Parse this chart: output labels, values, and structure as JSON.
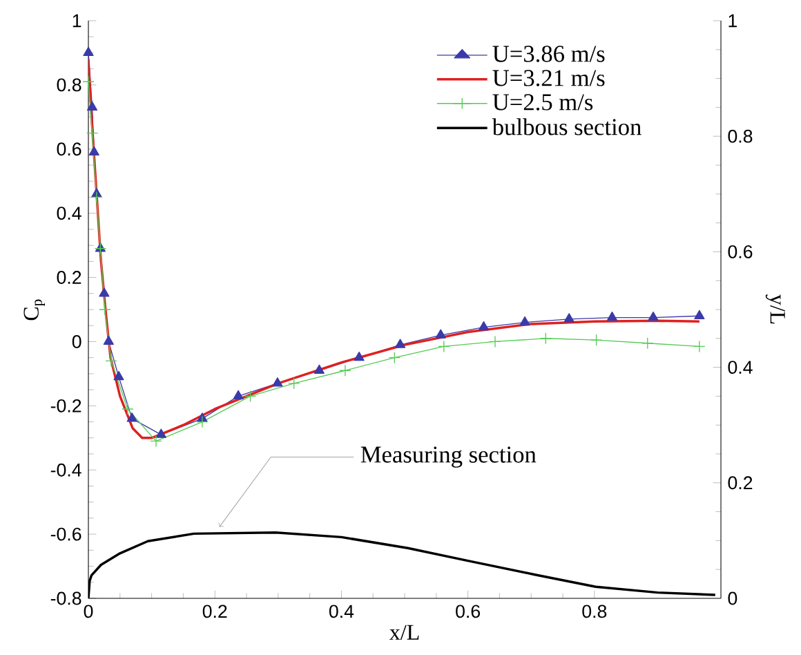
{
  "chart_data": {
    "type": "line",
    "xlabel": "x/L",
    "ylabel": "C$_{p}$",
    "y2label": "y/L",
    "xlim": [
      0,
      1
    ],
    "xticks": [
      0,
      0.2,
      0.4,
      0.6,
      0.8
    ],
    "ylim": [
      -0.8,
      1
    ],
    "yticks": [
      -0.8,
      -0.6,
      -0.4,
      -0.2,
      0,
      0.2,
      0.4,
      0.6,
      0.8,
      1
    ],
    "y2lim": [
      0,
      1
    ],
    "y2ticks": [
      0,
      0.2,
      0.4,
      0.6,
      0.8,
      1
    ],
    "legend": "top right",
    "annotations": [
      {
        "text": "Measuring section",
        "x": 0.207,
        "y": -0.578
      }
    ],
    "series": [
      {
        "name": "U=3.86 m/s",
        "color": "#3a3aa8",
        "marker": "triangle",
        "x": [
          0,
          0.006,
          0.009,
          0.013,
          0.019,
          0.025,
          0.032,
          0.048,
          0.069,
          0.115,
          0.18,
          0.237,
          0.299,
          0.365,
          0.428,
          0.493,
          0.557,
          0.625,
          0.69,
          0.76,
          0.828,
          0.893,
          0.966
        ],
        "values": [
          0.9,
          0.73,
          0.59,
          0.46,
          0.29,
          0.15,
          0.0,
          -0.11,
          -0.24,
          -0.29,
          -0.24,
          -0.17,
          -0.13,
          -0.09,
          -0.05,
          -0.01,
          0.02,
          0.045,
          0.06,
          0.07,
          0.075,
          0.075,
          0.08
        ]
      },
      {
        "name": "U=3.21 m/s",
        "color": "#e02020",
        "marker": "none",
        "x": [
          0,
          0.005,
          0.01,
          0.015,
          0.02,
          0.027,
          0.035,
          0.05,
          0.07,
          0.085,
          0.1,
          0.15,
          0.2,
          0.3,
          0.4,
          0.5,
          0.6,
          0.7,
          0.8,
          0.9,
          0.966
        ],
        "values": [
          0.88,
          0.7,
          0.55,
          0.4,
          0.25,
          0.1,
          -0.05,
          -0.17,
          -0.27,
          -0.3,
          -0.3,
          -0.26,
          -0.21,
          -0.13,
          -0.065,
          -0.01,
          0.03,
          0.055,
          0.063,
          0.065,
          0.063
        ]
      },
      {
        "name": "U=2.5 m/s",
        "color": "#55cc55",
        "marker": "cross",
        "x": [
          0,
          0.006,
          0.013,
          0.019,
          0.026,
          0.036,
          0.062,
          0.107,
          0.18,
          0.256,
          0.325,
          0.406,
          0.484,
          0.562,
          0.643,
          0.723,
          0.803,
          0.884,
          0.966
        ],
        "values": [
          0.81,
          0.65,
          0.45,
          0.29,
          0.1,
          -0.06,
          -0.21,
          -0.31,
          -0.25,
          -0.17,
          -0.13,
          -0.09,
          -0.05,
          -0.015,
          0.0,
          0.01,
          0.005,
          -0.005,
          -0.015
        ]
      },
      {
        "name": "bulbous section",
        "color": "#000000",
        "marker": "none",
        "axis": "y2",
        "x": [
          0,
          0.002,
          0.005,
          0.02,
          0.05,
          0.094,
          0.167,
          0.296,
          0.4,
          0.505,
          0.6,
          0.706,
          0.802,
          0.9,
          0.991
        ],
        "values": [
          0,
          0.03,
          0.04,
          0.058,
          0.078,
          0.099,
          0.112,
          0.114,
          0.106,
          0.087,
          0.065,
          0.041,
          0.02,
          0.01,
          0.006
        ]
      }
    ]
  }
}
